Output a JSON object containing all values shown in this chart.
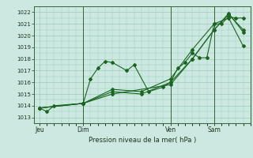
{
  "bg_color": "#cce8e0",
  "grid_color": "#99ccbb",
  "line_color": "#1a6620",
  "marker_color": "#1a6620",
  "ylabel_ticks": [
    1013,
    1014,
    1015,
    1016,
    1017,
    1018,
    1019,
    1020,
    1021,
    1022
  ],
  "ylim": [
    1012.5,
    1022.5
  ],
  "xlabel": "Pression niveau de la mer( hPa )",
  "xtick_labels": [
    "Jeu",
    "Dim",
    "Ven",
    "Sam"
  ],
  "xtick_positions": [
    0,
    24,
    72,
    96
  ],
  "series1_x": [
    0,
    4,
    8,
    24,
    28,
    32,
    36,
    40,
    48,
    52,
    60,
    68,
    72,
    76,
    80,
    84,
    88,
    92,
    96,
    100,
    104,
    108,
    112
  ],
  "series1_y": [
    1013.8,
    1013.5,
    1014.0,
    1014.2,
    1016.3,
    1017.2,
    1017.8,
    1017.7,
    1017.0,
    1017.5,
    1015.2,
    1015.6,
    1016.0,
    1017.2,
    1017.7,
    1018.5,
    1018.1,
    1018.1,
    1021.0,
    1021.0,
    1021.6,
    1021.5,
    1021.5
  ],
  "series2_x": [
    0,
    24,
    40,
    72,
    84,
    96,
    104,
    112
  ],
  "series2_y": [
    1013.8,
    1014.2,
    1015.0,
    1015.8,
    1018.0,
    1020.5,
    1021.8,
    1020.5
  ],
  "series3_x": [
    0,
    24,
    40,
    56,
    72,
    84,
    96,
    104,
    112
  ],
  "series3_y": [
    1013.8,
    1014.2,
    1015.2,
    1015.0,
    1016.0,
    1018.0,
    1020.5,
    1021.9,
    1020.3
  ],
  "series4_x": [
    0,
    24,
    40,
    56,
    72,
    84,
    96,
    104,
    112
  ],
  "series4_y": [
    1013.8,
    1014.2,
    1015.4,
    1015.2,
    1016.3,
    1018.8,
    1021.0,
    1021.5,
    1019.1
  ],
  "vline_positions": [
    24,
    72,
    96
  ],
  "xlim": [
    -3,
    116
  ]
}
